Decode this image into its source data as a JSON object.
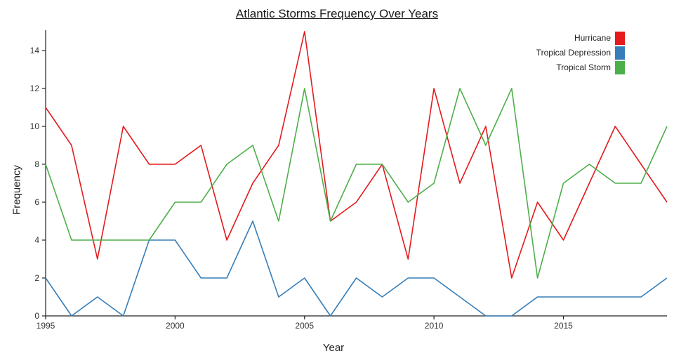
{
  "chart_data": {
    "type": "line",
    "title": "Atlantic Storms Frequency Over Years",
    "xlabel": "Year",
    "ylabel": "Frequency",
    "x": [
      1995,
      1996,
      1997,
      1998,
      1999,
      2000,
      2001,
      2002,
      2003,
      2004,
      2005,
      2006,
      2007,
      2008,
      2009,
      2010,
      2011,
      2012,
      2013,
      2014,
      2015,
      2016,
      2017,
      2018,
      2019
    ],
    "series": [
      {
        "name": "Hurricane",
        "color": "#e41a1c",
        "values": [
          11,
          9,
          3,
          10,
          8,
          8,
          9,
          4,
          7,
          9,
          15,
          5,
          6,
          8,
          3,
          12,
          7,
          10,
          2,
          6,
          4,
          7,
          10,
          8,
          6
        ]
      },
      {
        "name": "Tropical Depression",
        "color": "#377eb8",
        "values": [
          2,
          0,
          1,
          0,
          4,
          4,
          2,
          2,
          5,
          1,
          2,
          0,
          2,
          1,
          2,
          2,
          1,
          0,
          0,
          1,
          1,
          1,
          1,
          1,
          2
        ]
      },
      {
        "name": "Tropical Storm",
        "color": "#4daf4a",
        "values": [
          8,
          4,
          4,
          4,
          4,
          6,
          6,
          8,
          9,
          5,
          12,
          5,
          8,
          8,
          6,
          7,
          12,
          9,
          12,
          2,
          7,
          8,
          7,
          7,
          10
        ]
      }
    ],
    "xlim": [
      1995,
      2019
    ],
    "ylim": [
      0,
      15
    ],
    "xticks": [
      1995,
      2000,
      2005,
      2010,
      2015
    ],
    "yticks": [
      0,
      2,
      4,
      6,
      8,
      10,
      12,
      14
    ],
    "grid": false,
    "legend_position": "top-right",
    "axis_color": "#222222",
    "tick_label_color": "#333333"
  }
}
